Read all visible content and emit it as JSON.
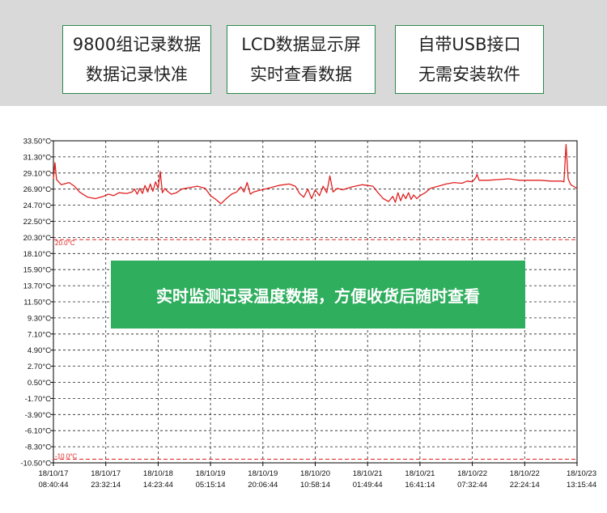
{
  "features": [
    {
      "line1": "9800组记录数据",
      "line2": "数据记录快准"
    },
    {
      "line1": "LCD数据显示屏",
      "line2": "实时查看数据"
    },
    {
      "line1": "自带USB接口",
      "line2": "无需安装软件"
    }
  ],
  "banner": {
    "text": "实时监测记录温度数据，方便收货后随时查看"
  },
  "colors": {
    "accent": "#2fae5e",
    "line": "#e02020",
    "box_border": "#2a8a4a",
    "band": "#d9d9d9"
  },
  "chart_data": {
    "type": "line",
    "ylim": [
      -10.5,
      33.5
    ],
    "y_ticks": [
      "33.50°C",
      "31.30°C",
      "29.10°C",
      "26.90°C",
      "24.70°C",
      "22.50°C",
      "20.30°C",
      "18.10°C",
      "15.90°C",
      "13.70°C",
      "11.50°C",
      "9.30°C",
      "7.10°C",
      "4.90°C",
      "2.70°C",
      "0.50°C",
      "-1.70°C",
      "-3.90°C",
      "-6.10°C",
      "-8.30°C",
      "-10.50°C"
    ],
    "y_tick_values": [
      33.5,
      31.3,
      29.1,
      26.9,
      24.7,
      22.5,
      20.3,
      18.1,
      15.9,
      13.7,
      11.5,
      9.3,
      7.1,
      4.9,
      2.7,
      0.5,
      -1.7,
      -3.9,
      -6.1,
      -8.3,
      -10.5
    ],
    "x_ticks": [
      {
        "date": "18/10/17",
        "time": "08:40:44"
      },
      {
        "date": "18/10/17",
        "time": "23:32:14"
      },
      {
        "date": "18/10/18",
        "time": "14:23:44"
      },
      {
        "date": "18/10/19",
        "time": "05:15:14"
      },
      {
        "date": "18/10/19",
        "time": "20:06:44"
      },
      {
        "date": "18/10/20",
        "time": "10:58:14"
      },
      {
        "date": "18/10/21",
        "time": "01:49:44"
      },
      {
        "date": "18/10/21",
        "time": "16:41:14"
      },
      {
        "date": "18/10/22",
        "time": "07:32:44"
      },
      {
        "date": "18/10/22",
        "time": "22:24:14"
      },
      {
        "date": "18/10/23",
        "time": "13:15:44"
      }
    ],
    "x_range": [
      "18/10/17 08:40:44",
      "18/10/23 13:15:44"
    ],
    "thresholds": [
      {
        "label": "20.0°C",
        "value": 20.0
      },
      {
        "label": "-10.0°C",
        "value": -10.0
      }
    ],
    "grid": true,
    "series": [
      {
        "points": [
          [
            0.0,
            28.3
          ],
          [
            0.003,
            30.5
          ],
          [
            0.006,
            28.2
          ],
          [
            0.015,
            27.5
          ],
          [
            0.03,
            27.8
          ],
          [
            0.04,
            27.3
          ],
          [
            0.05,
            26.5
          ],
          [
            0.065,
            25.8
          ],
          [
            0.08,
            25.6
          ],
          [
            0.095,
            25.9
          ],
          [
            0.105,
            26.2
          ],
          [
            0.115,
            26.0
          ],
          [
            0.125,
            26.4
          ],
          [
            0.14,
            26.3
          ],
          [
            0.15,
            26.5
          ],
          [
            0.155,
            26.9
          ],
          [
            0.16,
            26.2
          ],
          [
            0.165,
            27.0
          ],
          [
            0.17,
            26.3
          ],
          [
            0.175,
            27.4
          ],
          [
            0.18,
            26.5
          ],
          [
            0.185,
            27.6
          ],
          [
            0.19,
            26.6
          ],
          [
            0.195,
            27.9
          ],
          [
            0.2,
            27.0
          ],
          [
            0.204,
            29.3
          ],
          [
            0.208,
            26.4
          ],
          [
            0.213,
            27.0
          ],
          [
            0.218,
            26.6
          ],
          [
            0.225,
            26.2
          ],
          [
            0.235,
            26.4
          ],
          [
            0.245,
            26.9
          ],
          [
            0.26,
            27.1
          ],
          [
            0.275,
            27.3
          ],
          [
            0.29,
            27.0
          ],
          [
            0.3,
            26.0
          ],
          [
            0.31,
            25.5
          ],
          [
            0.32,
            24.9
          ],
          [
            0.33,
            25.6
          ],
          [
            0.34,
            26.2
          ],
          [
            0.35,
            26.5
          ],
          [
            0.358,
            27.2
          ],
          [
            0.364,
            26.5
          ],
          [
            0.37,
            27.8
          ],
          [
            0.376,
            26.2
          ],
          [
            0.382,
            26.5
          ],
          [
            0.392,
            26.7
          ],
          [
            0.41,
            27.0
          ],
          [
            0.43,
            27.4
          ],
          [
            0.45,
            27.6
          ],
          [
            0.462,
            27.3
          ],
          [
            0.47,
            26.3
          ],
          [
            0.478,
            25.8
          ],
          [
            0.486,
            26.9
          ],
          [
            0.493,
            25.6
          ],
          [
            0.5,
            26.8
          ],
          [
            0.508,
            26.0
          ],
          [
            0.515,
            27.3
          ],
          [
            0.522,
            26.4
          ],
          [
            0.528,
            28.7
          ],
          [
            0.534,
            26.5
          ],
          [
            0.542,
            27.0
          ],
          [
            0.552,
            26.8
          ],
          [
            0.57,
            27.2
          ],
          [
            0.59,
            27.5
          ],
          [
            0.61,
            27.3
          ],
          [
            0.62,
            26.4
          ],
          [
            0.63,
            25.6
          ],
          [
            0.64,
            25.2
          ],
          [
            0.648,
            25.9
          ],
          [
            0.653,
            25.1
          ],
          [
            0.658,
            26.4
          ],
          [
            0.663,
            25.3
          ],
          [
            0.668,
            26.2
          ],
          [
            0.673,
            25.6
          ],
          [
            0.678,
            26.4
          ],
          [
            0.683,
            25.5
          ],
          [
            0.688,
            26.1
          ],
          [
            0.694,
            25.6
          ],
          [
            0.7,
            26.0
          ],
          [
            0.71,
            26.4
          ],
          [
            0.72,
            27.0
          ],
          [
            0.735,
            27.3
          ],
          [
            0.75,
            27.6
          ],
          [
            0.765,
            27.8
          ],
          [
            0.78,
            27.7
          ],
          [
            0.79,
            28.0
          ],
          [
            0.8,
            27.9
          ],
          [
            0.806,
            28.4
          ],
          [
            0.809,
            28.9
          ],
          [
            0.813,
            28.1
          ],
          [
            0.83,
            28.1
          ],
          [
            0.85,
            28.2
          ],
          [
            0.87,
            28.3
          ],
          [
            0.89,
            28.1
          ],
          [
            0.91,
            28.1
          ],
          [
            0.93,
            28.1
          ],
          [
            0.95,
            28.0
          ],
          [
            0.97,
            28.0
          ],
          [
            0.975,
            27.9
          ],
          [
            0.979,
            33.0
          ],
          [
            0.983,
            28.3
          ],
          [
            0.988,
            27.5
          ],
          [
            0.995,
            27.2
          ],
          [
            1.0,
            27.0
          ]
        ]
      }
    ]
  }
}
